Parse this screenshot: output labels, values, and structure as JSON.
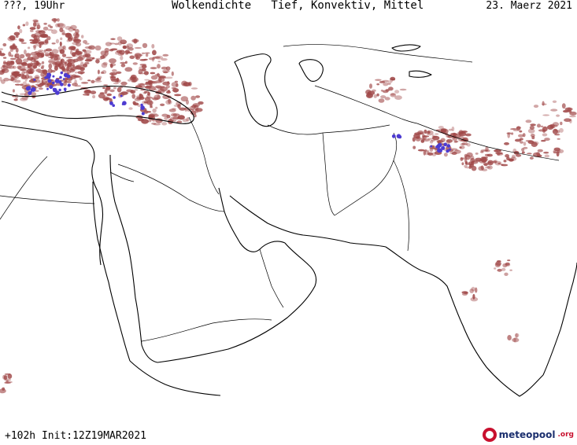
{
  "header": {
    "left": "???, 19Uhr",
    "title": "Wolkendichte   Tief, Konvektiv, Mittel",
    "date": "23. Maerz 2021"
  },
  "footer": {
    "run_info": "+102h Init:12Z19MAR2021",
    "logo_name": "meteopool",
    "logo_tld": ".org"
  },
  "map": {
    "region": "Middle East and South Asia",
    "cloud_color": "#a04848",
    "convective_color": "#4d3bd1",
    "coastline_color": "#000000",
    "border_color": "#000000"
  }
}
